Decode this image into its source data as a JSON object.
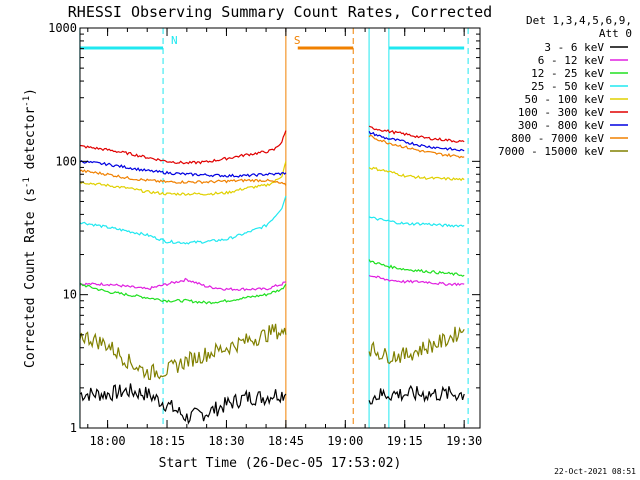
{
  "chart_data": {
    "type": "line",
    "title": "RHESSI Observing Summary Count Rates, Corrected",
    "xlabel": "Start Time (26-Dec-05 17:53:02)",
    "ylabel_main": "Corrected Count Rate (s",
    "ylabel_sup1": "-1",
    "ylabel_mid": " detector",
    "ylabel_sup2": "-1",
    "ylabel_end": ")",
    "yscale": "log",
    "ylim": [
      1,
      1000
    ],
    "xlim": [
      "17:53:02",
      "19:34:00"
    ],
    "x_ticks": [
      "18:00",
      "18:15",
      "18:30",
      "18:45",
      "19:00",
      "19:15",
      "19:30"
    ],
    "y_ticks": [
      "1",
      "10",
      "100",
      "1000"
    ],
    "legend_header": [
      "Det 1,3,4,5,6,9,",
      "Att 0"
    ],
    "legend_position": "right",
    "stamp": "22-Oct-2021 08:51",
    "series": [
      {
        "name": "3 - 6 keV",
        "color": "#000000"
      },
      {
        "name": "6 - 12 keV",
        "color": "#e020e0"
      },
      {
        "name": "12 - 25 keV",
        "color": "#20e020"
      },
      {
        "name": "25 - 50 keV",
        "color": "#20e8f0"
      },
      {
        "name": "50 - 100 keV",
        "color": "#e0d000"
      },
      {
        "name": "100 - 300 keV",
        "color": "#e00000"
      },
      {
        "name": "300 - 800 keV",
        "color": "#0000e0"
      },
      {
        "name": "800 - 7000 keV",
        "color": "#f08000"
      },
      {
        "name": "7000 - 15000 keV",
        "color": "#808000"
      }
    ],
    "segments": [
      {
        "x": [
          "17:53",
          "18:00",
          "18:05",
          "18:10",
          "18:15",
          "18:20",
          "18:25",
          "18:30",
          "18:35",
          "18:40",
          "18:42",
          "18:44",
          "18:45"
        ],
        "values": {
          "3 - 6 keV": [
            1.8,
            1.8,
            1.9,
            1.8,
            1.5,
            1.2,
            1.3,
            1.5,
            1.7,
            1.7,
            1.8,
            1.8,
            1.8
          ],
          "6 - 12 keV": [
            12,
            12,
            11.5,
            11,
            12,
            13,
            11.5,
            11,
            11,
            11,
            11.5,
            12,
            12.5
          ],
          "12 - 25 keV": [
            12,
            10.5,
            10,
            9.5,
            9,
            9,
            8.7,
            9,
            9.5,
            10,
            10.5,
            11,
            12
          ],
          "25 - 50 keV": [
            35,
            32,
            30,
            28,
            25,
            24.5,
            25,
            26,
            29,
            33,
            38,
            45,
            55
          ],
          "50 - 100 keV": [
            70,
            66,
            63,
            59,
            57,
            57,
            57,
            58,
            63,
            66,
            70,
            78,
            100
          ],
          "100 - 300 keV": [
            130,
            122,
            115,
            107,
            100,
            97,
            99,
            105,
            112,
            118,
            122,
            140,
            170
          ],
          "300 - 800 keV": [
            100,
            95,
            90,
            85,
            82,
            80,
            79,
            78,
            78,
            80,
            80,
            81,
            82
          ],
          "800 - 7000 keV": [
            85,
            80,
            75,
            72,
            70,
            70,
            70,
            71,
            72,
            72,
            70,
            68,
            66
          ],
          "7000 - 15000 keV": [
            5,
            4.2,
            3.2,
            2.6,
            2.7,
            3.2,
            3.6,
            4,
            4.5,
            5,
            5.4,
            5.2,
            5
          ]
        }
      },
      {
        "x": [
          "19:06",
          "19:10",
          "19:15",
          "19:20",
          "19:25",
          "19:30"
        ],
        "values": {
          "3 - 6 keV": [
            1.7,
            1.8,
            1.8,
            1.8,
            1.8,
            1.8
          ],
          "6 - 12 keV": [
            14,
            13,
            12.5,
            12.5,
            12,
            12
          ],
          "12 - 25 keV": [
            18,
            16.5,
            15.5,
            15,
            14.5,
            14
          ],
          "25 - 50 keV": [
            38,
            36,
            34,
            34,
            33,
            33
          ],
          "50 - 100 keV": [
            90,
            85,
            78,
            75,
            74,
            73
          ],
          "100 - 300 keV": [
            180,
            170,
            160,
            150,
            145,
            140
          ],
          "300 - 800 keV": [
            165,
            150,
            140,
            130,
            125,
            120
          ],
          "800 - 7000 keV": [
            155,
            140,
            128,
            118,
            112,
            108
          ],
          "7000 - 15000 keV": [
            4,
            3.5,
            3.5,
            4,
            4.5,
            5.5
          ]
        }
      }
    ],
    "flag_bars": [
      {
        "name": "N",
        "start": "17:53",
        "end": "18:14",
        "label_at": "18:15",
        "color": "#20e8f0"
      },
      {
        "name": "S",
        "start": "18:48",
        "end": "19:02",
        "label_at": "18:46",
        "color": "#f08000"
      },
      {
        "name": "",
        "start": "19:11",
        "end": "19:30",
        "label_at": "",
        "color": "#20e8f0"
      }
    ],
    "vlines": [
      {
        "at": "18:14",
        "style": "dashed",
        "color": "#20e8f0"
      },
      {
        "at": "18:45",
        "style": "solid",
        "color": "#f08000"
      },
      {
        "at": "19:02",
        "style": "dashed",
        "color": "#f08000"
      },
      {
        "at": "19:06",
        "style": "solid",
        "color": "#20e8f0"
      },
      {
        "at": "19:11",
        "style": "solid",
        "color": "#20e8f0"
      },
      {
        "at": "19:31",
        "style": "dashed",
        "color": "#20e8f0"
      },
      {
        "at": "17:53",
        "style": "solid",
        "color": "#20e8f0"
      }
    ]
  }
}
